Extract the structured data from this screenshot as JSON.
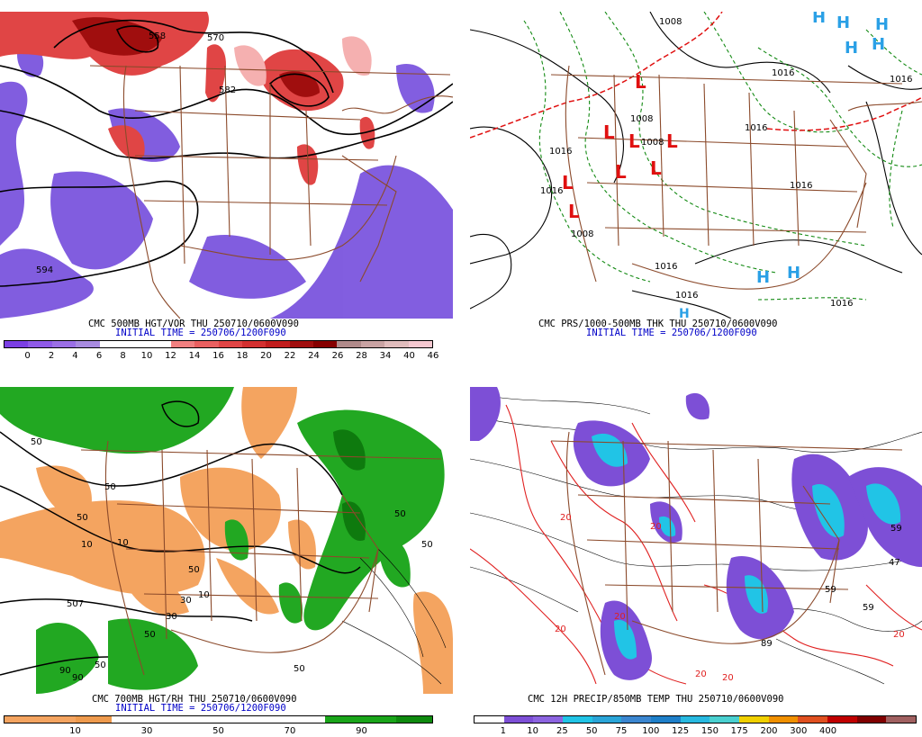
{
  "panels": [
    {
      "id": "vort",
      "title": "CMC 500MB HGT/VOR THU 250710/0600V090",
      "initial": "INITIAL TIME = 250706/1200F090",
      "colorbar": {
        "colors": [
          "#7b3fe4",
          "#8f5ae8",
          "#9b6fe6",
          "#a88be0",
          "#ffffff",
          "#ffffff",
          "#ffffff",
          "#f08080",
          "#e96060",
          "#e04545",
          "#d33030",
          "#c11d1d",
          "#a00e0e",
          "#860000",
          "#b08a8a",
          "#c9a3a3",
          "#e0bcbc",
          "#f5c8d0"
        ],
        "labels": [
          "0",
          "2",
          "4",
          "6",
          "8",
          "10",
          "12",
          "14",
          "16",
          "18",
          "20",
          "22",
          "24",
          "26",
          "28",
          "34",
          "40",
          "46"
        ]
      },
      "contour_labels": [
        "570",
        "582",
        "594",
        "558"
      ]
    },
    {
      "id": "prs",
      "title": "CMC PRS/1000-500MB THK THU 250710/0600V090",
      "initial": "INITIAL TIME = 250706/1200F090",
      "contour_labels": [
        "1008",
        "1016",
        "1016",
        "1008",
        "1008",
        "1016",
        "1016",
        "1016",
        "1016",
        "1016",
        "1016",
        "1008",
        "1016"
      ],
      "lows": [
        "L",
        "L",
        "L",
        "L",
        "L",
        "L",
        "L",
        "L"
      ],
      "highs": [
        "H",
        "H",
        "H",
        "H",
        "H",
        "H",
        "H",
        "H"
      ]
    },
    {
      "id": "rh",
      "title": "CMC 700MB HGT/RH THU 250710/0600V090",
      "initial": "INITIAL TIME = 250706/1200F090",
      "colorbar": {
        "colors": [
          "#f4a460",
          "#f4a460",
          "#ee9a4d",
          "#ffffff",
          "#ffffff",
          "#ffffff",
          "#ffffff",
          "#ffffff",
          "#ffffff",
          "#1aa51a",
          "#1aa51a",
          "#0e8a0e"
        ],
        "labels": [
          "10",
          "30",
          "50",
          "70",
          "90"
        ]
      },
      "contour_labels": [
        "50",
        "10",
        "10",
        "10",
        "50",
        "50",
        "30",
        "50",
        "50",
        "50",
        "50",
        "50",
        "50",
        "30",
        "90",
        "90",
        "507"
      ]
    },
    {
      "id": "precip",
      "title": "CMC 12H PRECIP/850MB TEMP THU 250710/0600V090",
      "colorbar": {
        "colors": [
          "#ffffff",
          "#7d4fd6",
          "#8c64e0",
          "#21c4e6",
          "#2aa5d8",
          "#3b86d0",
          "#1e7fc9",
          "#28b9e0",
          "#4ad0d0",
          "#f0d000",
          "#f09000",
          "#e05020",
          "#c00000",
          "#800000",
          "#a06060"
        ],
        "labels": [
          "1",
          "10",
          "25",
          "50",
          "75",
          "100",
          "125",
          "150",
          "175",
          "200",
          "300",
          "400"
        ]
      },
      "contour_labels": [
        "20",
        "20",
        "20",
        "20",
        "20",
        "20",
        "59",
        "89",
        "59",
        "47",
        "59",
        "20"
      ]
    }
  ]
}
